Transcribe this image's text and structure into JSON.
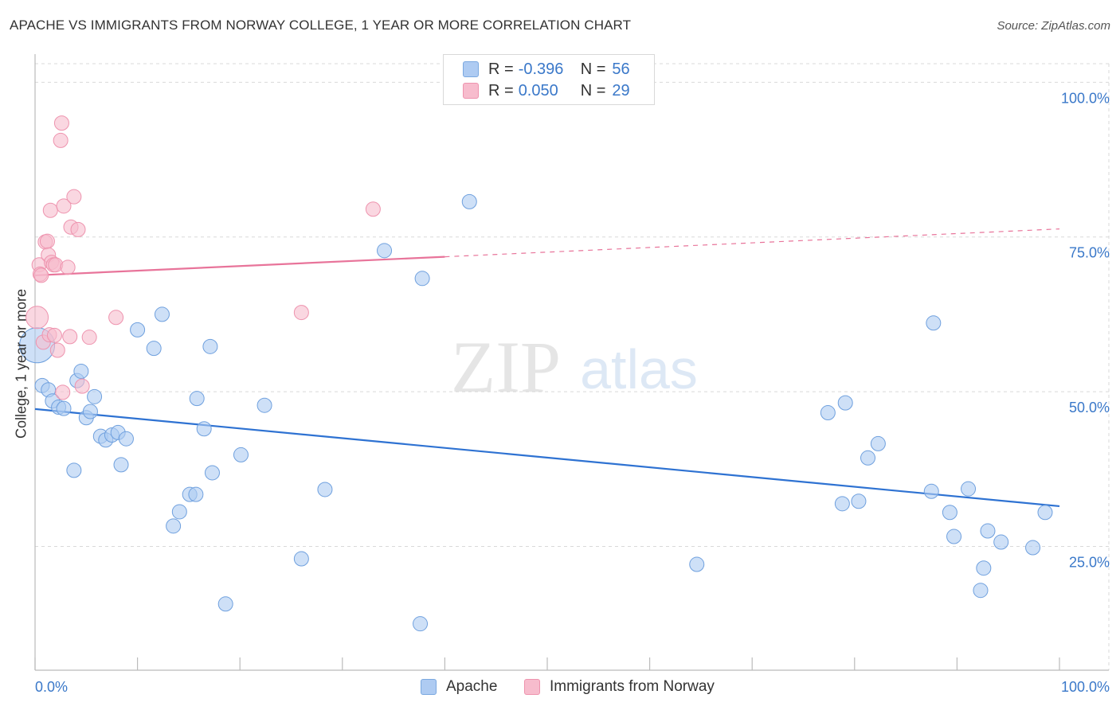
{
  "header": {
    "title": "APACHE VS IMMIGRANTS FROM NORWAY COLLEGE, 1 YEAR OR MORE CORRELATION CHART",
    "source": "Source: ZipAtlas.com"
  },
  "watermark": {
    "part1": "ZIP",
    "part2": "atlas"
  },
  "legend": {
    "rows": [
      {
        "r_label": "R =",
        "r_value": "-0.396",
        "n_label": "N =",
        "n_value": "56",
        "fill": "#aecbf2",
        "stroke": "#7aa8e0"
      },
      {
        "r_label": "R =",
        "r_value": "0.050",
        "n_label": "N =",
        "n_value": "29",
        "fill": "#f7bccd",
        "stroke": "#ee93ae"
      }
    ]
  },
  "colors": {
    "apache_fill": "#aecbf2",
    "apache_stroke": "#6fa0de",
    "apache_line": "#2e72d2",
    "norway_fill": "#f7bccd",
    "norway_stroke": "#ee93ae",
    "norway_line": "#e8749a",
    "tick_label": "#3a78c9",
    "grid": "#d9d9d9"
  },
  "chart_data": {
    "type": "scatter",
    "title": "APACHE VS IMMIGRANTS FROM NORWAY COLLEGE, 1 YEAR OR MORE CORRELATION CHART",
    "xlabel": "",
    "ylabel": "College, 1 year or more",
    "xlim": [
      0,
      100
    ],
    "ylim": [
      5,
      103
    ],
    "x_tick_labels": [
      "0.0%",
      "100.0%"
    ],
    "y_ticks": [
      25,
      50,
      75,
      100
    ],
    "y_tick_labels": [
      "25.0%",
      "50.0%",
      "75.0%",
      "100.0%"
    ],
    "grid": "horizontal dashed",
    "legend_position": "top-center",
    "series": [
      {
        "name": "Apache",
        "r": -0.396,
        "n": 56,
        "trend": {
          "x0": 0,
          "y0": 47.2,
          "x1": 100,
          "y1": 31.5
        },
        "points": [
          [
            0.2,
            57.5,
            22
          ],
          [
            0.7,
            51.0,
            9
          ],
          [
            1.3,
            50.3,
            9
          ],
          [
            1.7,
            48.5,
            9
          ],
          [
            2.3,
            47.5,
            9
          ],
          [
            2.8,
            47.3,
            9
          ],
          [
            3.8,
            37.3,
            9
          ],
          [
            4.1,
            51.8,
            9
          ],
          [
            4.5,
            53.3,
            9
          ],
          [
            5.0,
            45.8,
            9
          ],
          [
            5.4,
            46.8,
            9
          ],
          [
            5.8,
            49.2,
            9
          ],
          [
            6.4,
            42.8,
            9
          ],
          [
            6.9,
            42.2,
            9
          ],
          [
            7.5,
            43.0,
            9
          ],
          [
            8.1,
            43.4,
            9
          ],
          [
            8.4,
            38.2,
            9
          ],
          [
            8.9,
            42.4,
            9
          ],
          [
            10.0,
            60.0,
            9
          ],
          [
            11.6,
            57.0,
            9
          ],
          [
            12.4,
            62.5,
            9
          ],
          [
            13.5,
            28.3,
            9
          ],
          [
            14.1,
            30.6,
            9
          ],
          [
            15.1,
            33.4,
            9
          ],
          [
            15.7,
            33.4,
            9
          ],
          [
            15.8,
            48.9,
            9
          ],
          [
            16.5,
            44.0,
            9
          ],
          [
            17.1,
            57.3,
            9
          ],
          [
            17.3,
            36.9,
            9
          ],
          [
            18.6,
            15.7,
            9
          ],
          [
            20.1,
            39.8,
            9
          ],
          [
            22.4,
            47.8,
            9
          ],
          [
            26.0,
            23.0,
            9
          ],
          [
            28.3,
            34.2,
            9
          ],
          [
            34.1,
            72.8,
            9
          ],
          [
            37.6,
            12.5,
            9
          ],
          [
            37.8,
            68.3,
            9
          ],
          [
            42.4,
            80.7,
            9
          ],
          [
            64.6,
            22.1,
            9
          ],
          [
            77.4,
            46.6,
            9
          ],
          [
            78.8,
            31.9,
            9
          ],
          [
            79.1,
            48.2,
            9
          ],
          [
            80.4,
            32.3,
            9
          ],
          [
            81.3,
            39.3,
            9
          ],
          [
            82.3,
            41.6,
            9
          ],
          [
            87.5,
            33.9,
            9
          ],
          [
            87.7,
            61.1,
            9
          ],
          [
            89.3,
            30.5,
            9
          ],
          [
            89.7,
            26.6,
            9
          ],
          [
            91.1,
            34.3,
            9
          ],
          [
            92.3,
            17.9,
            9
          ],
          [
            92.6,
            21.5,
            9
          ],
          [
            93.0,
            27.5,
            9
          ],
          [
            94.3,
            25.7,
            9
          ],
          [
            97.4,
            24.8,
            9
          ],
          [
            98.6,
            30.5,
            9
          ]
        ]
      },
      {
        "name": "Immigrants from Norway",
        "r": 0.05,
        "n": 29,
        "trend": {
          "x0": 0,
          "y0": 68.8,
          "x1": 40,
          "y1": 71.8,
          "dash_to_x": 100,
          "dash_to_y": 76.3
        },
        "points": [
          [
            0.2,
            62.0,
            14
          ],
          [
            0.4,
            70.5,
            9
          ],
          [
            0.5,
            69.0,
            9
          ],
          [
            0.6,
            68.8,
            9
          ],
          [
            0.8,
            58.0,
            9
          ],
          [
            1.0,
            74.2,
            9
          ],
          [
            1.2,
            74.3,
            9
          ],
          [
            1.3,
            72.1,
            9
          ],
          [
            1.4,
            59.2,
            9
          ],
          [
            1.5,
            79.3,
            9
          ],
          [
            1.6,
            70.9,
            9
          ],
          [
            1.8,
            70.5,
            9
          ],
          [
            1.9,
            59.1,
            9
          ],
          [
            2.0,
            70.5,
            9
          ],
          [
            2.2,
            56.7,
            9
          ],
          [
            2.5,
            90.6,
            9
          ],
          [
            2.6,
            93.4,
            9
          ],
          [
            2.7,
            49.9,
            9
          ],
          [
            2.8,
            80.0,
            9
          ],
          [
            3.2,
            70.1,
            9
          ],
          [
            3.4,
            58.9,
            9
          ],
          [
            3.5,
            76.6,
            9
          ],
          [
            3.8,
            81.5,
            9
          ],
          [
            4.2,
            76.2,
            9
          ],
          [
            4.6,
            50.9,
            9
          ],
          [
            5.3,
            58.8,
            9
          ],
          [
            7.9,
            62.0,
            9
          ],
          [
            26.0,
            62.8,
            9
          ],
          [
            33.0,
            79.5,
            9
          ]
        ]
      }
    ]
  },
  "bottom_legend": {
    "items": [
      {
        "label": "Apache",
        "fill": "#aecbf2",
        "stroke": "#7aa8e0"
      },
      {
        "label": "Immigrants from Norway",
        "fill": "#f7bccd",
        "stroke": "#ee93ae"
      }
    ]
  }
}
